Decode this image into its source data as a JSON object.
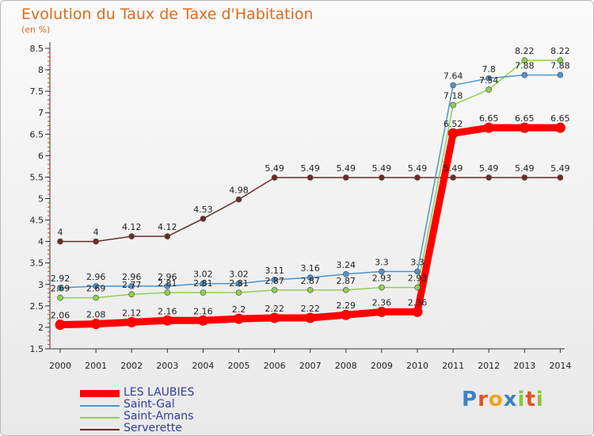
{
  "chart_data": {
    "type": "line",
    "title": "Evolution du Taux de Taxe d'Habitation",
    "subtitle": "(en %)",
    "x": [
      "2000",
      "2001",
      "2002",
      "2003",
      "2004",
      "2005",
      "2006",
      "2007",
      "2008",
      "2009",
      "2010",
      "2011",
      "2012",
      "2013",
      "2014"
    ],
    "ylim": [
      1.5,
      8.5
    ],
    "yticks": [
      "1.5",
      "2",
      "2.5",
      "3",
      "3.5",
      "4",
      "4.5",
      "5",
      "5.5",
      "6",
      "6.5",
      "7",
      "7.5",
      "8",
      "8.5"
    ],
    "grid": false,
    "legend_position": "bottom-left",
    "series": [
      {
        "name": "LES LAUBIES",
        "color": "#ff0000",
        "values": [
          2.06,
          2.08,
          2.12,
          2.16,
          2.16,
          2.2,
          2.22,
          2.22,
          2.29,
          2.36,
          2.36,
          6.52,
          6.65,
          6.65,
          6.65
        ],
        "labels": [
          "2.06",
          "2.08",
          "2.12",
          "2.16",
          "2.16",
          "2.2",
          "2.22",
          "2.22",
          "2.29",
          "2.36",
          "2.36",
          "6.52",
          "6.65",
          "6.65",
          "6.65"
        ]
      },
      {
        "name": "Saint-Gal",
        "color": "#4f94cd",
        "values": [
          2.92,
          2.96,
          2.96,
          2.96,
          3.02,
          3.02,
          3.11,
          3.16,
          3.24,
          3.3,
          3.3,
          7.64,
          7.8,
          7.88,
          7.88
        ],
        "labels": [
          "2.92",
          "2.96",
          "2.96",
          "2.96",
          "3.02",
          "3.02",
          "3.11",
          "3.16",
          "3.24",
          "3.3",
          "3.3",
          "7.64",
          "7.8",
          "7.88",
          "7.88"
        ]
      },
      {
        "name": "Saint-Amans",
        "color": "#8fd14f",
        "values": [
          2.69,
          2.69,
          2.77,
          2.81,
          2.81,
          2.81,
          2.87,
          2.87,
          2.87,
          2.93,
          2.93,
          7.18,
          7.54,
          8.22,
          8.22
        ],
        "labels": [
          "2.69",
          "2.69",
          "2.77",
          "2.81",
          "2.81",
          "2.81",
          "2.87",
          "2.87",
          "2.87",
          "2.93",
          "2.93",
          "7.18",
          "7.54",
          "8.22",
          "8.22"
        ]
      },
      {
        "name": "Serverette",
        "color": "#6b2b2b",
        "values": [
          4,
          4,
          4.12,
          4.12,
          4.53,
          4.98,
          5.49,
          5.49,
          5.49,
          5.49,
          5.49,
          5.49,
          5.49,
          5.49,
          5.49
        ],
        "labels": [
          "4",
          "4",
          "4.12",
          "4.12",
          "4.53",
          "4.98",
          "5.49",
          "5.49",
          "5.49",
          "5.49",
          "5.49",
          "5.49",
          "5.49",
          "5.49",
          "5.49"
        ]
      }
    ]
  },
  "brand": {
    "p": "P",
    "r": "r",
    "o": "o",
    "x": "x",
    "i": "i",
    "t": "t",
    "i2": "i"
  }
}
